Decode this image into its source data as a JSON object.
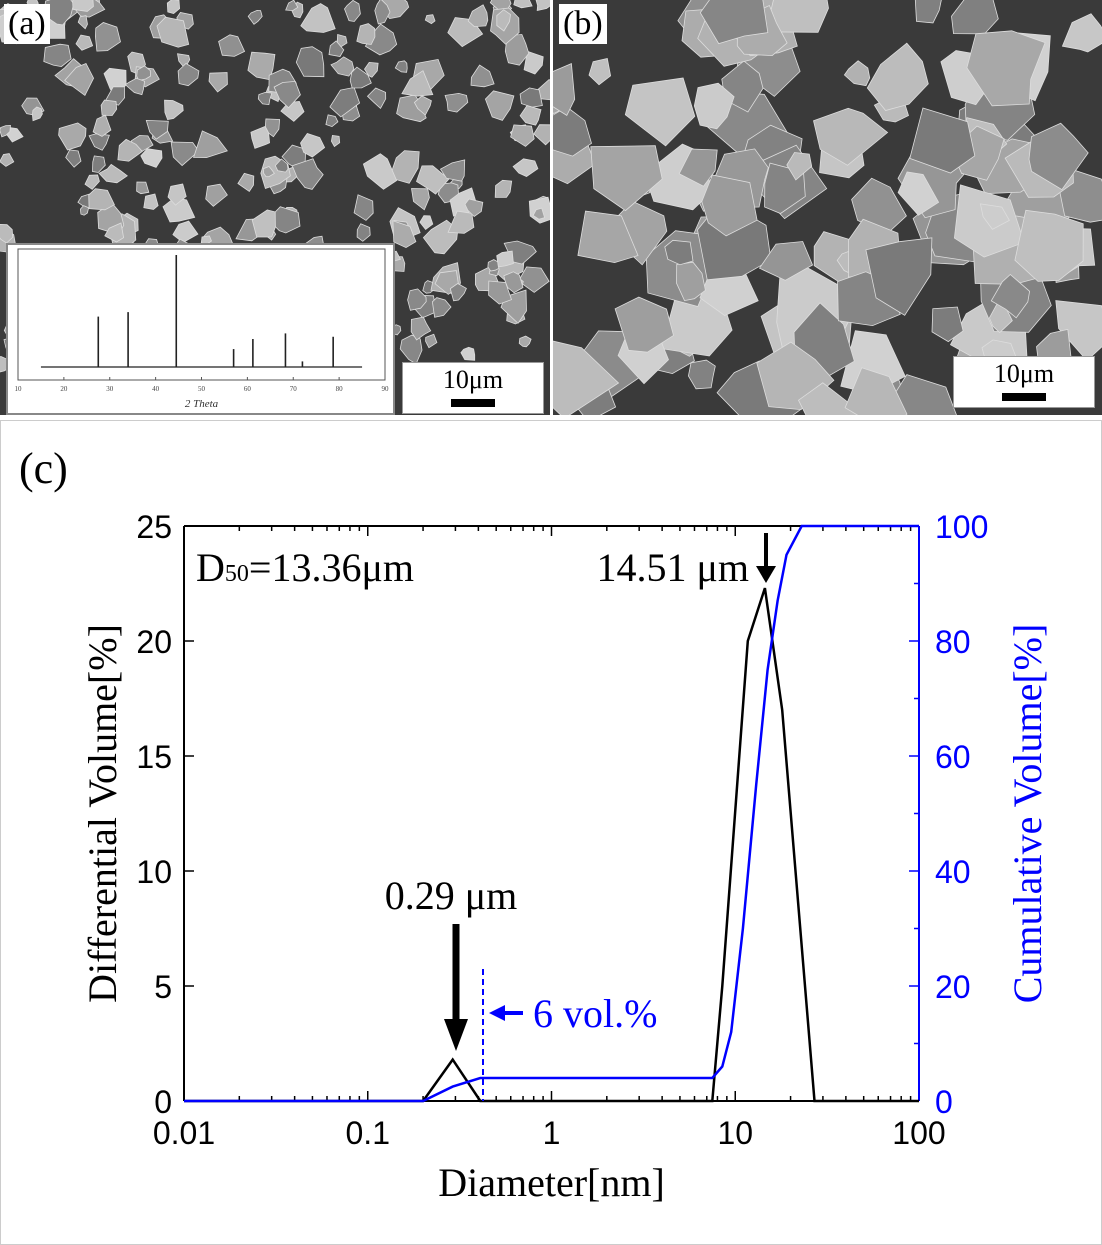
{
  "panels": {
    "a": {
      "label": "(a)",
      "scale_bar": "10μm"
    },
    "b": {
      "label": "(b)",
      "scale_bar": "10μm"
    },
    "c": {
      "label": "(c)"
    }
  },
  "inset": {
    "xlabel": "2 Theta",
    "xticks": [
      "10",
      "20",
      "30",
      "40",
      "50",
      "60",
      "70",
      "80",
      "90"
    ],
    "peaks": [
      [
        27.5,
        0.45
      ],
      [
        34,
        0.49
      ],
      [
        44.5,
        1.0
      ],
      [
        57,
        0.16
      ],
      [
        61.2,
        0.25
      ],
      [
        68.3,
        0.3
      ],
      [
        72,
        0.05
      ],
      [
        78.7,
        0.27
      ]
    ]
  },
  "chart_data": {
    "type": "line",
    "xlabel": "Diameter[nm]",
    "ylabel": "Differential Volume[%]",
    "y2label": "Cumulative Volume[%]",
    "xscale": "log",
    "xlim": [
      0.01,
      100
    ],
    "ylim": [
      0,
      25
    ],
    "y2lim": [
      0,
      100
    ],
    "xticks": [
      "0.01",
      "0.1",
      "1",
      "10",
      "100"
    ],
    "xtick_values": [
      0.01,
      0.1,
      1,
      10,
      100
    ],
    "yticks": [
      "0",
      "5",
      "10",
      "15",
      "20",
      "25"
    ],
    "y2ticks": [
      "0",
      "20",
      "40",
      "60",
      "80",
      "100"
    ],
    "series": [
      {
        "name": "Differential Volume",
        "axis": "left",
        "color": "#000000",
        "x": [
          0.01,
          0.2,
          0.29,
          0.41,
          7.5,
          8.5,
          11.7,
          14.5,
          18,
          27,
          100
        ],
        "y": [
          0,
          0,
          1.8,
          0,
          0,
          5,
          20,
          22.3,
          17,
          0,
          0
        ]
      },
      {
        "name": "Cumulative Volume",
        "axis": "right",
        "color": "#0000ff",
        "x": [
          0.01,
          0.2,
          0.29,
          0.41,
          7.5,
          8.5,
          9.5,
          11,
          13,
          15,
          17,
          19,
          23,
          100
        ],
        "y": [
          0,
          0,
          2.5,
          4,
          4,
          6,
          12,
          30,
          55,
          75,
          87,
          95,
          100,
          100
        ]
      }
    ],
    "annotations": {
      "d50": "D",
      "d50_sub": "50",
      "d50_value": "=13.36μm",
      "peak1": "0.29 μm",
      "peak2": "14.51 μm",
      "vol": "6 vol.%"
    }
  }
}
